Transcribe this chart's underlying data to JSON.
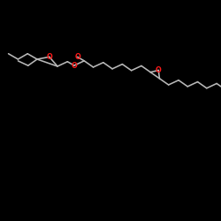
{
  "background": "#000000",
  "bond_color": "#b8b8b8",
  "oxygen_color": "#ff1a1a",
  "bond_width": 1.15,
  "figsize": [
    2.5,
    2.5
  ],
  "dpi": 100,
  "step": 12.5,
  "o_fontsize": 5.8,
  "epox_r": 7.0,
  "xlim": [
    0,
    250
  ],
  "ylim": [
    0,
    250
  ]
}
